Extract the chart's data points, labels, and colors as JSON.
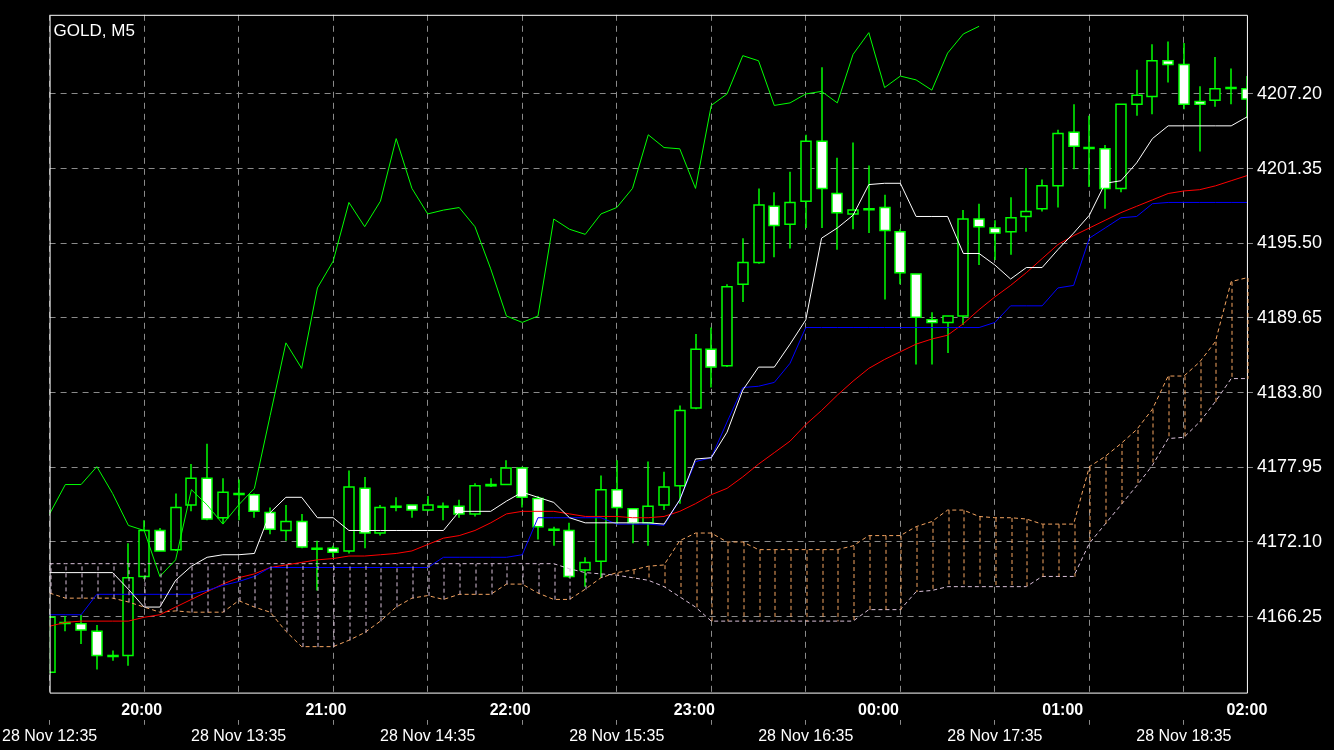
{
  "chart_data": {
    "type": "candlestick",
    "title": "GOLD, M5",
    "categories": [
      "28 Nov 12:35",
      null,
      null,
      null,
      null,
      null,
      null,
      null,
      null,
      null,
      null,
      null,
      "28 Nov 13:35",
      null,
      null,
      null,
      null,
      null,
      null,
      null,
      null,
      null,
      null,
      null,
      "28 Nov 14:35",
      null,
      null,
      null,
      null,
      null,
      null,
      null,
      null,
      null,
      null,
      null,
      "28 Nov 15:35",
      null,
      null,
      null,
      null,
      null,
      null,
      null,
      null,
      null,
      null,
      null,
      "28 Nov 16:35",
      null,
      null,
      null,
      null,
      null,
      null,
      null,
      null,
      null,
      null,
      null,
      "28 Nov 17:35",
      null,
      null,
      null,
      null,
      null,
      null,
      null,
      null,
      null,
      null,
      null,
      "28 Nov 18:35",
      null,
      null,
      null,
      null
    ],
    "ohlc": [
      [
        4161.9,
        4166.3,
        4161.9,
        4166.2
      ],
      [
        4165.8,
        4166.3,
        4165.1,
        4165.8
      ],
      [
        4165.7,
        4166.4,
        4164.1,
        4165.2
      ],
      [
        4165.1,
        4165.6,
        4162.1,
        4163.2
      ],
      [
        4163.2,
        4163.6,
        4162.8,
        4163.2
      ],
      [
        4163.2,
        4172.0,
        4162.4,
        4169.3
      ],
      [
        4169.4,
        4173.8,
        4169.2,
        4173.0
      ],
      [
        4173.0,
        4173.2,
        4171.4,
        4171.4
      ],
      [
        4171.5,
        4175.9,
        4171.4,
        4174.8
      ],
      [
        4175.0,
        4178.2,
        4174.5,
        4177.1
      ],
      [
        4177.1,
        4179.8,
        4173.8,
        4173.9
      ],
      [
        4174.0,
        4177.1,
        4173.5,
        4176.0
      ],
      [
        4175.9,
        4177.0,
        4173.8,
        4175.9
      ],
      [
        4175.8,
        4175.9,
        4174.0,
        4174.5
      ],
      [
        4174.4,
        4174.8,
        4172.7,
        4173.1
      ],
      [
        4173.0,
        4175.0,
        4172.2,
        4173.7
      ],
      [
        4173.7,
        4174.3,
        4171.6,
        4171.7
      ],
      [
        4171.6,
        4172.2,
        4168.3,
        4171.6
      ],
      [
        4171.6,
        4171.8,
        4170.9,
        4171.3
      ],
      [
        4171.4,
        4177.7,
        4171.2,
        4176.4
      ],
      [
        4176.3,
        4177.2,
        4171.6,
        4172.8
      ],
      [
        4172.8,
        4175.0,
        4172.6,
        4174.8
      ],
      [
        4174.9,
        4175.6,
        4174.5,
        4174.9
      ],
      [
        4175.0,
        4175.0,
        4174.0,
        4174.6
      ],
      [
        4174.6,
        4175.7,
        4174.5,
        4175.0
      ],
      [
        4174.9,
        4175.2,
        4173.8,
        4174.9
      ],
      [
        4174.9,
        4175.4,
        4174.0,
        4174.3
      ],
      [
        4174.3,
        4176.7,
        4174.1,
        4176.5
      ],
      [
        4176.5,
        4177.1,
        4176.4,
        4176.6
      ],
      [
        4176.6,
        4178.5,
        4176.6,
        4177.9
      ],
      [
        4177.9,
        4178.0,
        4174.8,
        4175.6
      ],
      [
        4175.5,
        4175.7,
        4172.3,
        4173.3
      ],
      [
        4173.1,
        4173.3,
        4171.8,
        4173.1
      ],
      [
        4173.0,
        4173.6,
        4169.3,
        4169.4
      ],
      [
        4169.9,
        4170.9,
        4168.6,
        4170.5
      ],
      [
        4170.6,
        4177.3,
        4169.3,
        4176.2
      ],
      [
        4176.2,
        4178.5,
        4173.5,
        4174.8
      ],
      [
        4174.7,
        4174.7,
        4172.0,
        4173.6
      ],
      [
        4173.6,
        4178.4,
        4171.8,
        4174.9
      ],
      [
        4175.0,
        4177.6,
        4174.6,
        4176.4
      ],
      [
        4176.5,
        4182.8,
        4175.1,
        4182.4
      ],
      [
        4182.6,
        4188.4,
        4182.5,
        4187.2
      ],
      [
        4187.2,
        4188.9,
        4184.2,
        4185.8
      ],
      [
        4185.9,
        4192.3,
        4185.8,
        4192.1
      ],
      [
        4192.3,
        4195.9,
        4190.9,
        4194.0
      ],
      [
        4194.0,
        4199.8,
        4193.9,
        4198.5
      ],
      [
        4198.4,
        4199.5,
        4194.4,
        4196.9
      ],
      [
        4197.0,
        4201.1,
        4195.1,
        4198.7
      ],
      [
        4198.8,
        4204.0,
        4196.7,
        4203.5
      ],
      [
        4203.5,
        4209.3,
        4196.7,
        4199.8
      ],
      [
        4199.4,
        4202.2,
        4195.0,
        4197.9
      ],
      [
        4197.8,
        4203.4,
        4196.6,
        4198.1
      ],
      [
        4198.2,
        4201.6,
        4196.3,
        4198.2
      ],
      [
        4198.3,
        4199.3,
        4191.1,
        4196.5
      ],
      [
        4196.4,
        4196.6,
        4192.3,
        4193.2
      ],
      [
        4193.1,
        4193.1,
        4186.0,
        4189.7
      ],
      [
        4189.5,
        4190.1,
        4186.0,
        4189.3
      ],
      [
        4189.3,
        4189.8,
        4186.9,
        4189.8
      ],
      [
        4189.8,
        4198.1,
        4189.1,
        4197.4
      ],
      [
        4197.4,
        4198.6,
        4193.8,
        4196.8
      ],
      [
        4196.7,
        4197.3,
        4194.2,
        4196.3
      ],
      [
        4196.4,
        4199.1,
        4194.6,
        4197.5
      ],
      [
        4197.6,
        4201.4,
        4196.4,
        4198.0
      ],
      [
        4198.2,
        4200.5,
        4198.0,
        4200.0
      ],
      [
        4200.0,
        4204.4,
        4198.3,
        4204.1
      ],
      [
        4204.2,
        4206.4,
        4201.3,
        4203.1
      ],
      [
        4203.0,
        4205.5,
        4199.9,
        4203.0
      ],
      [
        4202.9,
        4203.2,
        4198.2,
        4199.8
      ],
      [
        4199.8,
        4206.4,
        4199.5,
        4206.4
      ],
      [
        4206.4,
        4209.1,
        4205.5,
        4207.1
      ],
      [
        4207.0,
        4211.1,
        4205.6,
        4209.8
      ],
      [
        4209.8,
        4211.3,
        4208.1,
        4209.5
      ],
      [
        4209.5,
        4211.2,
        4206.0,
        4206.4
      ],
      [
        4206.6,
        4207.8,
        4202.7,
        4206.4
      ],
      [
        4206.7,
        4210.1,
        4206.2,
        4207.6
      ],
      [
        4207.7,
        4209.2,
        4206.4,
        4207.7
      ],
      [
        4207.6,
        4208.6,
        4205.3,
        4206.8
      ]
    ],
    "color": "#00ff00",
    "colors": [
      "#000000",
      "#000000",
      "#ffffff",
      "#ffffff",
      "#000000",
      "#000000",
      "#000000",
      "#ffffff",
      "#000000",
      "#000000",
      "#ffffff",
      "#000000",
      "#000000",
      "#ffffff",
      "#ffffff",
      "#000000",
      "#ffffff",
      "#000000",
      "#ffffff",
      "#000000",
      "#ffffff",
      "#000000",
      "#000000",
      "#ffffff",
      "#000000",
      "#000000",
      "#ffffff",
      "#000000",
      "#000000",
      "#000000",
      "#ffffff",
      "#ffffff",
      "#000000",
      "#ffffff",
      "#000000",
      "#000000",
      "#ffffff",
      "#ffffff",
      "#000000",
      "#000000",
      "#000000",
      "#000000",
      "#ffffff",
      "#000000",
      "#000000",
      "#000000",
      "#ffffff",
      "#000000",
      "#000000",
      "#ffffff",
      "#ffffff",
      "#000000",
      "#000000",
      "#ffffff",
      "#ffffff",
      "#ffffff",
      "#ffffff",
      "#000000",
      "#000000",
      "#ffffff",
      "#ffffff",
      "#000000",
      "#000000",
      "#000000",
      "#000000",
      "#ffffff",
      "#000000",
      "#ffffff",
      "#000000",
      "#000000",
      "#000000",
      "#ffffff",
      "#ffffff",
      "#ffffff",
      "#000000",
      "#000000",
      "#ffffff"
    ],
    "series": [
      {
        "type": "line",
        "color": "#00ff00",
        "values": [
          4174.3,
          4176.6,
          4176.6,
          4178.0,
          4175.9,
          4173.4,
          4173.0,
          4169.4,
          4170.7,
          4176.2,
          4175.0,
          4173.5,
          4175.0,
          4176.3,
          4182.0,
          4187.7,
          4185.7,
          4192.0,
          4194.1,
          4198.7,
          4196.8,
          4198.8,
          4203.7,
          4199.8,
          4197.8,
          4198.1,
          4198.3,
          4196.8,
          4193.5,
          4189.8,
          4189.3,
          4189.8,
          4197.4,
          4196.6,
          4196.2,
          4197.8,
          4198.3,
          4199.8,
          4204.0,
          4203.0,
          4202.9,
          4199.8,
          4206.3,
          4207.2,
          4210.2,
          4209.8,
          4206.3,
          4206.5,
          4207.2,
          4207.4,
          4206.5,
          4210.3,
          4212.0,
          4207.7,
          4208.6,
          4208.3,
          4207.5,
          4210.4,
          4211.9,
          4212.5,
          null,
          null,
          null,
          null,
          null,
          null,
          null,
          null,
          null,
          null,
          null,
          null,
          null,
          null,
          null,
          null,
          null
        ]
      },
      {
        "type": "line",
        "color": "#ffffff",
        "values": [
          4169.7,
          4169.7,
          4169.7,
          4169.7,
          4169.7,
          4168.4,
          4167.0,
          4167.0,
          4169.1,
          4170.2,
          4170.9,
          4171.1,
          4171.1,
          4171.2,
          4174.4,
          4175.6,
          4175.6,
          4174.0,
          4174.0,
          4173.0,
          4173.0,
          4173.0,
          4173.0,
          4173.0,
          4173.0,
          4173.0,
          4174.5,
          4174.5,
          4174.5,
          4175.3,
          4176.0,
          4175.6,
          4175.2,
          4174.0,
          4173.6,
          4173.6,
          4173.6,
          4173.6,
          4173.6,
          4173.5,
          4175.4,
          4178.6,
          4178.7,
          4180.7,
          4184.0,
          4185.8,
          4185.8,
          4187.6,
          4189.5,
          4195.9,
          4196.7,
          4197.7,
          4200.1,
          4200.2,
          4200.2,
          4197.6,
          4197.6,
          4197.6,
          4194.7,
          4194.7,
          4193.8,
          4192.7,
          4193.6,
          4193.6,
          4195.0,
          4196.3,
          4197.7,
          4200.2,
          4200.4,
          4201.8,
          4203.7,
          4204.7,
          4204.7,
          4204.7,
          4204.7,
          4204.7,
          4205.4
        ]
      },
      {
        "type": "line",
        "color": "#0000ff",
        "values": [
          4166.4,
          4166.4,
          4166.4,
          4168.0,
          4168.0,
          4168.0,
          4168.0,
          4168.0,
          4168.0,
          4168.0,
          4168.3,
          4168.7,
          4169.0,
          4169.4,
          4170.1,
          4170.1,
          4170.1,
          4170.1,
          4170.1,
          4170.1,
          4170.1,
          4170.1,
          4170.1,
          4170.1,
          4170.1,
          4170.9,
          4170.9,
          4170.9,
          4170.9,
          4170.9,
          4171.1,
          4174.0,
          4174.0,
          4174.0,
          4174.0,
          4174.0,
          4173.5,
          4173.5,
          4173.5,
          4173.4,
          4175.4,
          4178.4,
          4178.7,
          4181.5,
          4184.2,
          4184.3,
          4184.6,
          4186.1,
          4188.9,
          4188.9,
          4188.9,
          4188.9,
          4188.9,
          4188.9,
          4188.9,
          4188.9,
          4188.9,
          4188.9,
          4188.9,
          4188.9,
          4189.3,
          4190.6,
          4190.6,
          4190.6,
          4192.0,
          4192.2,
          4195.9,
          4196.7,
          4197.5,
          4197.6,
          4198.6,
          4198.7,
          4198.7,
          4198.7,
          4198.7,
          4198.7,
          4198.7
        ]
      },
      {
        "type": "line",
        "color": "#ff0000",
        "values": [
          4165.5,
          4165.8,
          4165.9,
          4165.9,
          4165.9,
          4165.9,
          4166.2,
          4166.4,
          4167.0,
          4167.6,
          4168.2,
          4168.8,
          4169.3,
          4169.6,
          4170.1,
          4170.3,
          4170.5,
          4170.7,
          4170.8,
          4171.0,
          4171.0,
          4171.1,
          4171.2,
          4171.4,
          4171.9,
          4172.4,
          4172.6,
          4173.0,
          4173.6,
          4174.3,
          4174.5,
          4174.5,
          4174.5,
          4174.3,
          4174.1,
          4174.1,
          4174.1,
          4174.0,
          4174.0,
          4174.1,
          4174.5,
          4175.1,
          4175.8,
          4176.3,
          4177.2,
          4178.2,
          4179.1,
          4180.0,
          4181.3,
          4182.4,
          4183.6,
          4184.7,
          4185.7,
          4186.4,
          4187.0,
          4187.6,
          4188.0,
          4188.3,
          4189.2,
          4190.3,
          4191.3,
          4192.2,
          4193.2,
          4194.3,
          4195.4,
          4196.1,
          4196.7,
          4197.3,
          4197.9,
          4198.4,
          4198.9,
          4199.4,
          4199.6,
          4199.7,
          4200.0,
          4200.4,
          4200.8
        ]
      },
      {
        "type": "line",
        "color": "#f4a460",
        "line_style": "dashed",
        "values": [
          4168.1,
          4167.7,
          4167.7,
          4167.7,
          4167.7,
          4167.4,
          4167.0,
          4166.6,
          4166.7,
          4166.6,
          4166.6,
          4166.6,
          4167.5,
          4167.0,
          4166.6,
          4165.1,
          4163.9,
          4163.9,
          4163.9,
          4164.4,
          4165.0,
          4165.9,
          4167.0,
          4167.7,
          4167.9,
          4167.6,
          4168.0,
          4168.0,
          4168.0,
          4168.8,
          4168.8,
          4168.1,
          4167.6,
          4167.6,
          4168.4,
          4169.3,
          4169.7,
          4169.9,
          4170.2,
          4170.3,
          4172.2,
          4172.8,
          4172.8,
          4172.1,
          4172.1,
          4171.5,
          4171.5,
          4171.5,
          4171.5,
          4171.5,
          4171.5,
          4171.8,
          4172.6,
          4172.6,
          4172.6,
          4173.3,
          4173.7,
          4174.6,
          4174.6,
          4174.1,
          4174.0,
          4174.0,
          4173.9,
          4173.5,
          4173.5,
          4173.5,
          4178.0,
          4178.8,
          4179.8,
          4180.9,
          4182.5,
          4185.1,
          4185.1,
          4186.2,
          4187.8,
          4192.5,
          4192.8
        ]
      },
      {
        "type": "line",
        "color": "#d8bfd8",
        "line_style": "dashed",
        "values": [
          4170.4,
          4170.4,
          4170.4,
          4170.4,
          4170.4,
          4170.4,
          4170.4,
          4170.4,
          4170.4,
          4170.4,
          4170.4,
          4170.4,
          4170.4,
          4170.4,
          4170.4,
          4170.4,
          4170.4,
          4170.4,
          4170.4,
          4170.4,
          4170.4,
          4170.4,
          4170.4,
          4170.4,
          4170.4,
          4170.4,
          4170.4,
          4170.4,
          4170.4,
          4170.4,
          4170.4,
          4170.4,
          4170.4,
          4170.0,
          4169.7,
          4169.6,
          4169.5,
          4169.3,
          4169.1,
          4168.6,
          4167.8,
          4167.0,
          4165.9,
          4165.9,
          4165.9,
          4165.9,
          4165.9,
          4165.9,
          4165.9,
          4165.9,
          4165.9,
          4165.9,
          4166.8,
          4166.8,
          4166.8,
          4168.2,
          4168.3,
          4168.6,
          4168.6,
          4168.6,
          4168.6,
          4168.6,
          4168.6,
          4169.4,
          4169.4,
          4169.4,
          4172.0,
          4173.5,
          4175.0,
          4176.5,
          4178.1,
          4180.2,
          4180.3,
          4181.5,
          4183.1,
          4184.9,
          4184.9
        ]
      }
    ],
    "ylim": [
      4160.3,
      4213.4
    ],
    "yticks": [
      {
        "value": 4166.25,
        "label": "4166.25"
      },
      {
        "value": 4172.1,
        "label": "4172.10"
      },
      {
        "value": 4177.95,
        "label": "4177.95"
      },
      {
        "value": 4183.8,
        "label": "4183.80"
      },
      {
        "value": 4189.65,
        "label": "4189.65"
      },
      {
        "value": 4195.5,
        "label": "4195.50"
      },
      {
        "value": 4201.35,
        "label": "4201.35"
      },
      {
        "value": 4207.2,
        "label": "4207.20"
      }
    ],
    "x2lim": [
      "--11-28T19:30",
      "--11-29T02:00"
    ],
    "x2ticks": [
      {
        "value": "--11-28T20:00",
        "label": "20:00"
      },
      {
        "value": "--11-28T21:00",
        "label": "21:00"
      },
      {
        "value": "--11-28T22:00",
        "label": "22:00"
      },
      {
        "value": "--11-28T23:00",
        "label": "23:00"
      },
      {
        "value": "--11-29T00:00",
        "label": "00:00"
      },
      {
        "value": "--11-29T01:00",
        "label": "01:00"
      },
      {
        "value": "--11-29T02:00",
        "label": "02:00"
      }
    ],
    "grid": true
  }
}
